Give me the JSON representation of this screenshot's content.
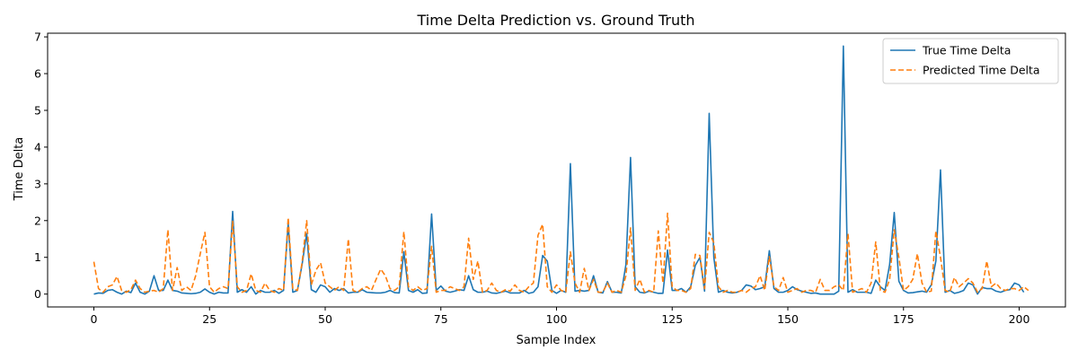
{
  "chart_data": {
    "type": "line",
    "title": "Time Delta Prediction vs. Ground Truth",
    "xlabel": "Sample Index",
    "ylabel": "Time Delta",
    "xlim": [
      -10,
      210
    ],
    "ylim": [
      -0.35,
      7.1
    ],
    "xticks": [
      0,
      25,
      50,
      75,
      100,
      125,
      150,
      175,
      200
    ],
    "yticks": [
      0,
      1,
      2,
      3,
      4,
      5,
      6,
      7
    ],
    "grid": false,
    "legend_position": "top-right",
    "series": [
      {
        "name": "True Time Delta",
        "color": "#1f77b4",
        "style": "solid",
        "values": [
          0.0,
          0.03,
          0.02,
          0.1,
          0.12,
          0.05,
          0.0,
          0.08,
          0.04,
          0.3,
          0.05,
          0.0,
          0.08,
          0.5,
          0.1,
          0.1,
          0.38,
          0.1,
          0.08,
          0.03,
          0.02,
          0.01,
          0.02,
          0.05,
          0.14,
          0.05,
          0.0,
          0.05,
          0.03,
          0.03,
          2.25,
          0.05,
          0.12,
          0.05,
          0.2,
          0.0,
          0.1,
          0.05,
          0.05,
          0.1,
          0.02,
          0.1,
          1.92,
          0.05,
          0.1,
          0.8,
          1.65,
          0.12,
          0.05,
          0.25,
          0.2,
          0.05,
          0.15,
          0.1,
          0.15,
          0.03,
          0.05,
          0.05,
          0.12,
          0.05,
          0.04,
          0.03,
          0.03,
          0.05,
          0.1,
          0.04,
          0.03,
          1.15,
          0.1,
          0.05,
          0.12,
          0.02,
          0.03,
          2.18,
          0.1,
          0.22,
          0.08,
          0.05,
          0.08,
          0.12,
          0.1,
          0.5,
          0.12,
          0.05,
          0.05,
          0.08,
          0.03,
          0.02,
          0.05,
          0.08,
          0.03,
          0.03,
          0.03,
          0.1,
          0.02,
          0.05,
          0.2,
          1.05,
          0.9,
          0.1,
          0.02,
          0.1,
          0.05,
          3.55,
          0.08,
          0.1,
          0.08,
          0.1,
          0.5,
          0.05,
          0.03,
          0.34,
          0.05,
          0.05,
          0.03,
          0.8,
          3.72,
          0.2,
          0.05,
          0.03,
          0.08,
          0.05,
          0.02,
          0.02,
          1.2,
          0.1,
          0.1,
          0.15,
          0.05,
          0.2,
          0.78,
          1.0,
          0.08,
          4.92,
          1.0,
          0.05,
          0.1,
          0.05,
          0.03,
          0.05,
          0.1,
          0.25,
          0.22,
          0.12,
          0.15,
          0.2,
          1.18,
          0.15,
          0.05,
          0.05,
          0.1,
          0.2,
          0.12,
          0.08,
          0.05,
          0.02,
          0.03,
          0.0,
          0.0,
          0.0,
          0.0,
          0.08,
          6.75,
          0.05,
          0.12,
          0.05,
          0.05,
          0.05,
          0.02,
          0.38,
          0.2,
          0.1,
          0.8,
          2.22,
          0.35,
          0.1,
          0.03,
          0.04,
          0.06,
          0.08,
          0.05,
          0.25,
          0.9,
          3.38,
          0.05,
          0.1,
          0.02,
          0.05,
          0.1,
          0.3,
          0.25,
          0.0,
          0.18,
          0.15,
          0.15,
          0.08,
          0.05,
          0.1,
          0.12,
          0.3,
          0.25,
          0.05
        ]
      },
      {
        "name": "Predicted Time Delta",
        "color": "#ff7f0e",
        "style": "dashed",
        "values": [
          0.88,
          0.15,
          0.05,
          0.2,
          0.25,
          0.48,
          0.1,
          0.05,
          0.12,
          0.38,
          0.15,
          0.05,
          0.08,
          0.1,
          0.05,
          0.15,
          1.75,
          0.1,
          0.72,
          0.1,
          0.2,
          0.1,
          0.5,
          1.1,
          1.68,
          0.2,
          0.05,
          0.15,
          0.2,
          0.15,
          1.98,
          0.2,
          0.05,
          0.1,
          0.55,
          0.1,
          0.05,
          0.3,
          0.1,
          0.05,
          0.15,
          0.1,
          2.08,
          0.15,
          0.1,
          0.85,
          2.0,
          0.25,
          0.65,
          0.85,
          0.3,
          0.2,
          0.1,
          0.2,
          0.1,
          1.5,
          0.1,
          0.05,
          0.15,
          0.2,
          0.1,
          0.4,
          0.68,
          0.5,
          0.15,
          0.1,
          0.2,
          1.7,
          0.2,
          0.1,
          0.2,
          0.1,
          0.15,
          1.3,
          0.05,
          0.1,
          0.1,
          0.2,
          0.15,
          0.1,
          0.2,
          1.52,
          0.4,
          0.9,
          0.05,
          0.1,
          0.3,
          0.1,
          0.05,
          0.12,
          0.08,
          0.25,
          0.1,
          0.05,
          0.2,
          0.3,
          1.6,
          1.9,
          0.2,
          0.05,
          0.25,
          0.1,
          0.05,
          1.15,
          0.3,
          0.05,
          0.7,
          0.1,
          0.4,
          0.05,
          0.05,
          0.3,
          0.05,
          0.1,
          0.05,
          0.5,
          1.8,
          0.1,
          0.4,
          0.05,
          0.1,
          0.05,
          1.72,
          0.3,
          2.2,
          0.2,
          0.1,
          0.1,
          0.05,
          0.15,
          1.08,
          1.05,
          0.15,
          1.68,
          1.4,
          0.2,
          0.05,
          0.1,
          0.05,
          0.05,
          0.1,
          0.05,
          0.15,
          0.2,
          0.5,
          0.1,
          1.02,
          0.2,
          0.1,
          0.45,
          0.05,
          0.1,
          0.15,
          0.05,
          0.1,
          0.1,
          0.05,
          0.4,
          0.1,
          0.1,
          0.2,
          0.25,
          0.1,
          1.65,
          0.05,
          0.1,
          0.15,
          0.05,
          0.3,
          1.42,
          0.1,
          0.05,
          0.4,
          1.75,
          1.0,
          0.1,
          0.2,
          0.4,
          1.1,
          0.3,
          0.05,
          0.08,
          1.72,
          1.0,
          0.1,
          0.05,
          0.45,
          0.2,
          0.3,
          0.42,
          0.3,
          0.05,
          0.15,
          0.9,
          0.2,
          0.3,
          0.15,
          0.1,
          0.15,
          0.15,
          0.1,
          0.2,
          0.1
        ]
      }
    ]
  }
}
